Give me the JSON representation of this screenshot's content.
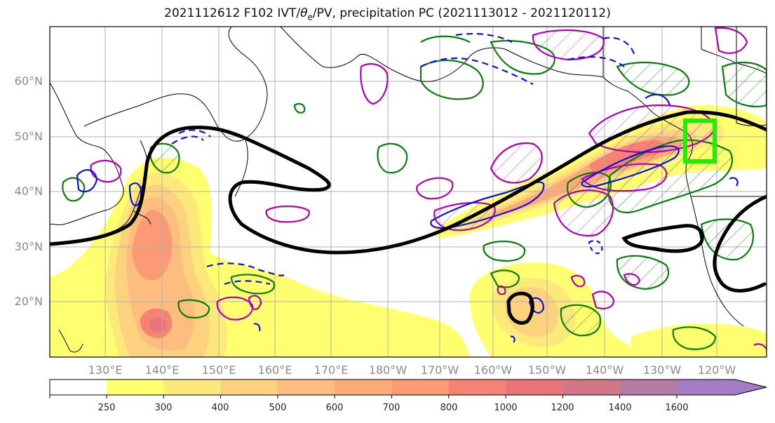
{
  "title": {
    "prefix": "2021112612 F102 IVT/",
    "theta": "θ",
    "theta_sub": "e",
    "suffix": "/PV, precipitation PC (2021113012 - 2021120112)"
  },
  "map": {
    "lat_labels": [
      "60°N",
      "50°N",
      "40°N",
      "30°N",
      "20°N"
    ],
    "lon_labels": [
      "130°E",
      "140°E",
      "150°E",
      "160°E",
      "170°E",
      "180°W",
      "170°W",
      "160°W",
      "150°W",
      "140°W",
      "130°W",
      "120°W"
    ],
    "colors": {
      "jet_contour": "#000000",
      "pv_contour": "#b000b0",
      "precip_contour": "#0a7d0a",
      "theta_contour": "#1010e0",
      "target_box": "#22ee00",
      "coastline": "#000000",
      "gridline": "#b0b0b0"
    }
  },
  "colorbar": {
    "labels": [
      "250",
      "300",
      "400",
      "500",
      "600",
      "700",
      "800",
      "1000",
      "1200",
      "1400",
      "1600"
    ],
    "colors": [
      "#ffff70",
      "#fde97a",
      "#fdd27e",
      "#fdbd7e",
      "#fcab78",
      "#fb9a74",
      "#f58273",
      "#e87478",
      "#d27788",
      "#b57aa5",
      "#a47bc5"
    ]
  }
}
